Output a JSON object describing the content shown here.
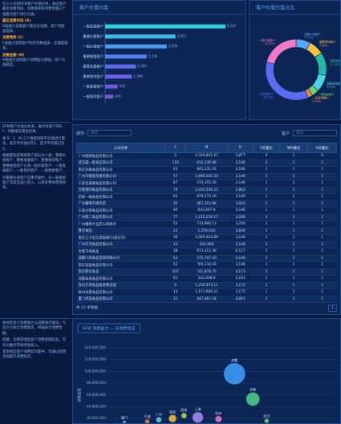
{
  "sidebar": [
    [
      {
        "kind": "p",
        "text": "近三十天的RFM客户价值分析，通过客户最近消费时间、消费频率和消费金额三个维度对客户进行分类。"
      },
      {
        "kind": "h",
        "text": "最近消费时间 (R)"
      },
      {
        "kind": "p",
        "text": "R值越小说明客户最近有消费，客户活跃度越高。"
      },
      {
        "kind": "h",
        "text": "消费频率 (F)"
      },
      {
        "kind": "p",
        "text": "F值越大说明客户购买次数越多，忠诚度越高。"
      },
      {
        "kind": "h",
        "text": "消费金额 (M)"
      },
      {
        "kind": "p",
        "text": "M值越大说明客户消费能力越强，客户价值越高。"
      }
    ],
    [
      {
        "kind": "p",
        "text": "RFM客户价值分析表，展示各客户的R、F、M数值及量化结果。"
      },
      {
        "kind": "p",
        "text": "将 R、F、M 三个维度按照平均值进行量化，高于平均值记为1，低于平均值记为0。"
      },
      {
        "kind": "p",
        "text": "根据量化结果将客户划分为八类：重要价值客户、重要发展客户、重要保持客户、重要挽留客户以及一般价值客户、一般发展客户、一般保持客户、一般挽留客户。"
      },
      {
        "kind": "p",
        "text": "对重要价值客户应重点维护，对一般挽留客户可适当减少投入，以提升整体营销效率。"
      }
    ],
    [
      {
        "kind": "p",
        "text": "各地区客户消费能力与消费频次情况，气泡大小表示消费频次，纵轴表示消费金额。"
      },
      {
        "kind": "p",
        "text": "成都、合肥等地区客户消费金额较高，可作为重点市场持续投入。"
      },
      {
        "kind": "p",
        "text": "其余地区客户消费较为集中，可通过促销活动提升消费频次。"
      }
    ]
  ],
  "chart_data": [
    {
      "type": "bar",
      "title": "客户价值分类",
      "categories": [
        "一般发展客户",
        "重要价值客户",
        "一般价值客户",
        "重要挽留客户",
        "重要发展客户",
        "重要保持客户",
        "一般挽留客户",
        "一般保持客户"
      ],
      "values": [
        6247,
        3651,
        3200,
        2156,
        1600,
        1389,
        653,
        426
      ],
      "value_labels": [
        "6,247",
        "3,651",
        "3,200",
        "2,156",
        "1,600",
        "1,389",
        "653",
        "426"
      ],
      "colors": [
        "#2fd0e0",
        "#3fb6ea",
        "#4a9cf0",
        "#537ff0",
        "#5f6cec",
        "#6a5fe2",
        "#7357d8",
        "#7a50cf"
      ]
    },
    {
      "type": "pie",
      "title": "客户价值分类占比",
      "categories": [
        "重要价值客户",
        "重要保持客户",
        "重要挽留客户",
        "重要发展客户",
        "一般挽留客户",
        "一般保持客户",
        "一般发展客户",
        "一般价值客户"
      ],
      "values": [
        7.72,
        7.95,
        12.34,
        9.15,
        3.74,
        2.44,
        35.76,
        20.9
      ],
      "value_labels": [
        "7.72%",
        "7.95%",
        "12.34%",
        "9.15%",
        "3.74%",
        "2.44%",
        "35.76%",
        "20.90%"
      ],
      "colors": [
        "#58a8f5",
        "#f5c342",
        "#27b7a5",
        "#4fd2e8",
        "#6bd66b",
        "#f08a4b",
        "#5b6cf0",
        "#f07ac8"
      ]
    },
    {
      "type": "bubble",
      "title": "RFM 消费能力 — 年消费情况",
      "y_label": "消费金额",
      "labels": [
        "成都",
        "合肥",
        "上海",
        "南京",
        "广州",
        "杭州",
        "武汉",
        "宁波",
        "厦门",
        "西安"
      ],
      "x": [
        55,
        63,
        39,
        28,
        22,
        48,
        69,
        17,
        7,
        33
      ],
      "values": [
        96000000,
        53000000,
        22000000,
        20000000,
        18000000,
        19000000,
        16000000,
        15000000,
        14000000,
        25000000
      ],
      "sizes": [
        40,
        25,
        20,
        14,
        10,
        12,
        8,
        8,
        6,
        10
      ],
      "colors": [
        "#3fa0ff",
        "#4fd18b",
        "#a98cf5",
        "#f5c342",
        "#5fd6e8",
        "#f07ac8",
        "#7ee07a",
        "#f08a4b",
        "#58a8f5",
        "#c3e04f"
      ],
      "xlim": [
        0,
        100
      ],
      "ylim": [
        0,
        140000000
      ],
      "yticks": [
        {
          "value": 20000000,
          "label": "20,000,000"
        },
        {
          "value": 40000000,
          "label": "40,000,000"
        },
        {
          "value": 60000000,
          "label": "60,000,000"
        },
        {
          "value": 80000000,
          "label": "80,000,000"
        },
        {
          "value": 100000000,
          "label": "100,000,000"
        },
        {
          "value": 120000000,
          "label": "120,000,000"
        },
        {
          "value": 140000000,
          "label": "140,000,000"
        }
      ],
      "grid": true
    }
  ],
  "filters": [
    {
      "label": "城市",
      "placeholder": "筛选"
    },
    {
      "label": "客户",
      "placeholder": "筛选"
    }
  ],
  "table": {
    "columns": [
      "公司名称",
      "F",
      "M",
      "R",
      "F的量化",
      "M的量化",
      "R的量化"
    ],
    "rows": [
      [
        "广州南翔食品有限公司",
        "2",
        "4,544,941.67",
        "3,877",
        "0",
        "1",
        "0"
      ],
      [
        "武汉晨一批发应商公司",
        "118",
        "632,536.86",
        "3,146",
        "1",
        "1",
        "1"
      ],
      [
        "南京达泰食品有限公司",
        "62",
        "841,231.02",
        "3,146",
        "1",
        "1",
        "1"
      ],
      [
        "广州市鼎发贸易有限公司",
        "57",
        "1,896,500.33",
        "3,146",
        "1",
        "1",
        "1"
      ],
      [
        "宁波金诚通食品有限公司",
        "87",
        "474,355.56",
        "3,146",
        "1",
        "1",
        "1"
      ],
      [
        "合肥第四食品有限公司",
        "79",
        "1,035,546.23",
        "2,862",
        "1",
        "1",
        "1"
      ],
      [
        "西安一泰食品有限公司",
        "62",
        "879,272.16",
        "3,146",
        "1",
        "1",
        "1"
      ],
      [
        "广州番禺市维华店",
        "35",
        "467,263.86",
        "3,693",
        "1",
        "1",
        "1"
      ],
      [
        "宁波分销食品有限公司",
        "40",
        "643,497.9",
        "3,146",
        "1",
        "1",
        "1"
      ],
      [
        "广州第二食品有限公司",
        "77",
        "1,215,259.17",
        "3,200",
        "1",
        "1",
        "1"
      ],
      [
        "广州番禺大石店以商网点",
        "52",
        "733,860.13",
        "3,250",
        "1",
        "1",
        "1"
      ],
      [
        "景点食品",
        "23",
        "1,259,544",
        "3,836",
        "1",
        "1",
        "1"
      ],
      [
        "南京江宁区信得联销行(南京市)",
        "36",
        "1,069,414.89",
        "3,146",
        "1",
        "1",
        "1"
      ],
      [
        "广州天河食品有限公司",
        "33",
        "924,900",
        "3,148",
        "1",
        "1",
        "1"
      ],
      [
        "合肥市场食品",
        "38",
        "973,312.36",
        "6,127",
        "1",
        "1",
        "1"
      ],
      [
        "成都川尚食品连锁有限公司",
        "53",
        "375,707.43",
        "3,146",
        "1",
        "1",
        "1"
      ],
      [
        "南京泊盈食品有限公司",
        "52",
        "764,134.02",
        "3,146",
        "1",
        "1",
        "1"
      ],
      [
        "南京新名食品",
        "107",
        "741,878.75",
        "3,173",
        "1",
        "1",
        "1"
      ],
      [
        "成都泰发食品有限公司",
        "61",
        "322,058.9",
        "3,161",
        "1",
        "1",
        "1"
      ],
      [
        "苏州万泽食品批发物流部",
        "9",
        "1,256,973.11",
        "3,175",
        "1",
        "1",
        "1"
      ],
      [
        "杭州海景食品有限公司",
        "14",
        "1,157,684.21",
        "3,175",
        "1",
        "1",
        "1"
      ],
      [
        "厦门泽美食品有限公司",
        "11",
        "647,067.54",
        "4,667",
        "1",
        "1",
        "1"
      ]
    ]
  },
  "pagination": {
    "summary": "共 22 条数据",
    "page": "1"
  }
}
